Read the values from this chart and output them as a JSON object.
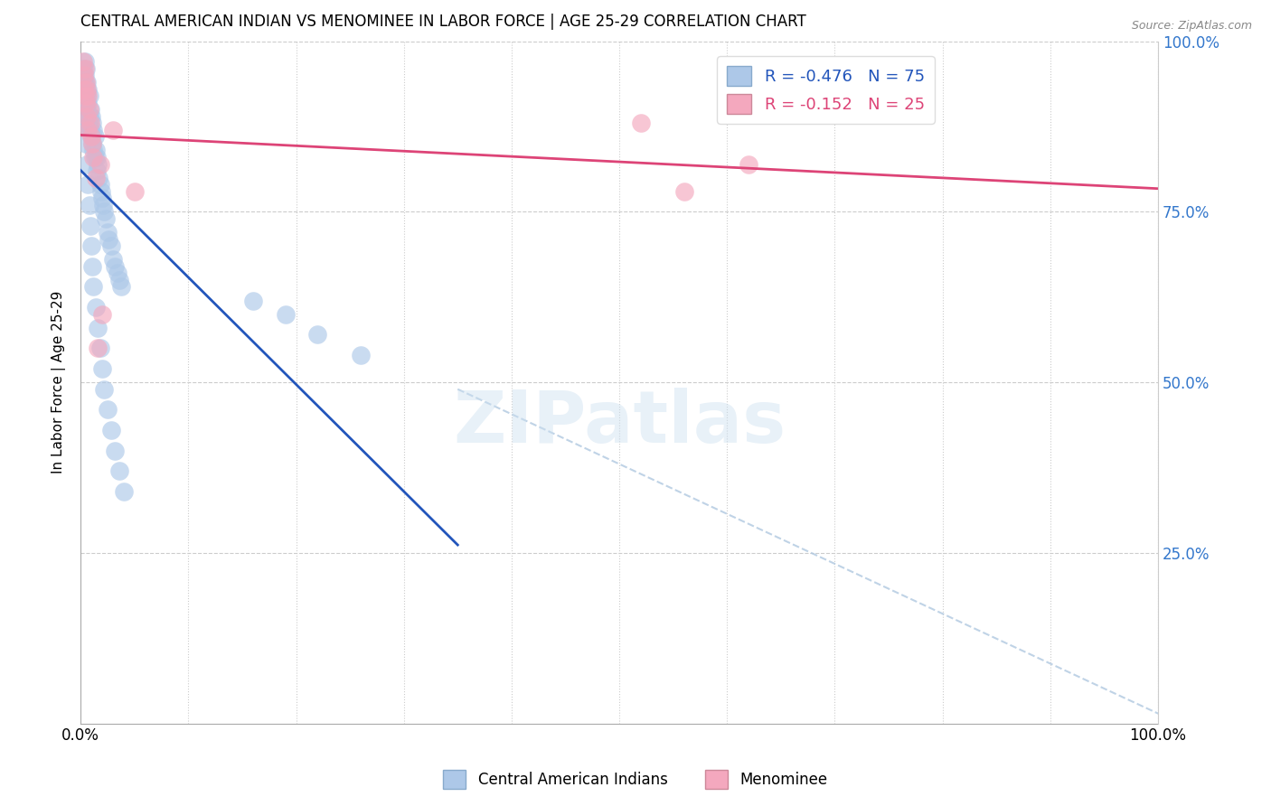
{
  "title": "CENTRAL AMERICAN INDIAN VS MENOMINEE IN LABOR FORCE | AGE 25-29 CORRELATION CHART",
  "source": "Source: ZipAtlas.com",
  "ylabel": "In Labor Force | Age 25-29",
  "xlim": [
    0,
    1.0
  ],
  "ylim": [
    0,
    1.0
  ],
  "blue_R": -0.476,
  "blue_N": 75,
  "pink_R": -0.152,
  "pink_N": 25,
  "blue_color": "#adc8e8",
  "pink_color": "#f4a8be",
  "blue_line_color": "#2255bb",
  "pink_line_color": "#dd4477",
  "gray_line_color": "#b0c8e0",
  "watermark_text": "ZIPatlas",
  "legend_blue_label": "Central American Indians",
  "legend_pink_label": "Menominee",
  "blue_x": [
    0.002,
    0.002,
    0.003,
    0.003,
    0.003,
    0.004,
    0.004,
    0.004,
    0.005,
    0.005,
    0.005,
    0.005,
    0.006,
    0.006,
    0.006,
    0.007,
    0.007,
    0.007,
    0.008,
    0.008,
    0.008,
    0.009,
    0.009,
    0.01,
    0.01,
    0.011,
    0.011,
    0.012,
    0.012,
    0.013,
    0.013,
    0.014,
    0.015,
    0.015,
    0.016,
    0.017,
    0.018,
    0.019,
    0.02,
    0.021,
    0.022,
    0.023,
    0.025,
    0.026,
    0.028,
    0.03,
    0.032,
    0.034,
    0.036,
    0.038,
    0.002,
    0.003,
    0.004,
    0.005,
    0.006,
    0.007,
    0.008,
    0.009,
    0.01,
    0.011,
    0.012,
    0.014,
    0.016,
    0.018,
    0.02,
    0.022,
    0.025,
    0.028,
    0.032,
    0.036,
    0.04,
    0.16,
    0.19,
    0.22,
    0.26
  ],
  "blue_y": [
    0.96,
    0.95,
    0.94,
    0.93,
    0.92,
    0.97,
    0.95,
    0.94,
    0.96,
    0.93,
    0.91,
    0.89,
    0.94,
    0.92,
    0.9,
    0.93,
    0.91,
    0.88,
    0.92,
    0.89,
    0.87,
    0.9,
    0.87,
    0.89,
    0.86,
    0.88,
    0.85,
    0.87,
    0.84,
    0.86,
    0.83,
    0.84,
    0.83,
    0.81,
    0.82,
    0.8,
    0.79,
    0.78,
    0.77,
    0.76,
    0.75,
    0.74,
    0.72,
    0.71,
    0.7,
    0.68,
    0.67,
    0.66,
    0.65,
    0.64,
    0.94,
    0.91,
    0.88,
    0.85,
    0.82,
    0.79,
    0.76,
    0.73,
    0.7,
    0.67,
    0.64,
    0.61,
    0.58,
    0.55,
    0.52,
    0.49,
    0.46,
    0.43,
    0.4,
    0.37,
    0.34,
    0.62,
    0.6,
    0.57,
    0.54
  ],
  "pink_x": [
    0.002,
    0.003,
    0.003,
    0.004,
    0.004,
    0.005,
    0.005,
    0.006,
    0.006,
    0.007,
    0.007,
    0.008,
    0.009,
    0.01,
    0.011,
    0.012,
    0.014,
    0.016,
    0.018,
    0.02,
    0.03,
    0.05,
    0.52,
    0.56,
    0.62
  ],
  "pink_y": [
    0.97,
    0.95,
    0.93,
    0.96,
    0.92,
    0.94,
    0.91,
    0.93,
    0.89,
    0.92,
    0.87,
    0.9,
    0.88,
    0.86,
    0.85,
    0.83,
    0.8,
    0.55,
    0.82,
    0.6,
    0.87,
    0.78,
    0.88,
    0.78,
    0.82
  ]
}
